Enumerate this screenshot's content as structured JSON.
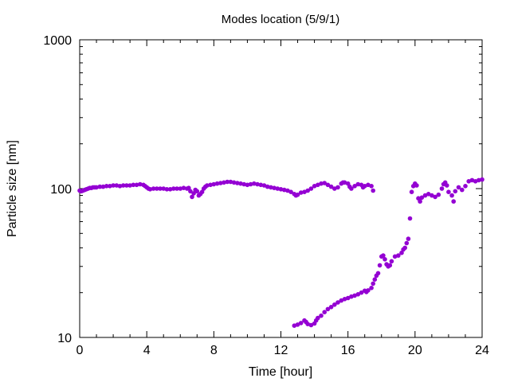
{
  "chart_data": {
    "type": "scatter",
    "title": "Modes location (5/9/1)",
    "xlabel": "Time [hour]",
    "ylabel": "Particle size [nm]",
    "xlim": [
      0,
      24
    ],
    "ylim": [
      10,
      1000
    ],
    "y_scale": "log",
    "x_ticks": [
      0,
      4,
      8,
      12,
      16,
      20,
      24
    ],
    "y_ticks": [
      10,
      100,
      1000
    ],
    "grid": false,
    "legend": "none",
    "marker_color": "#9400d3",
    "series": [
      {
        "points": [
          [
            0.0,
            97
          ],
          [
            0.1,
            96
          ],
          [
            0.2,
            97
          ],
          [
            0.3,
            98
          ],
          [
            0.4,
            99
          ],
          [
            0.5,
            100
          ],
          [
            0.6,
            101
          ],
          [
            0.7,
            101
          ],
          [
            0.8,
            102
          ],
          [
            0.9,
            102
          ],
          [
            1.0,
            102
          ],
          [
            1.2,
            103
          ],
          [
            1.4,
            103
          ],
          [
            1.6,
            104
          ],
          [
            1.8,
            104
          ],
          [
            2.0,
            105
          ],
          [
            2.2,
            105
          ],
          [
            2.4,
            104
          ],
          [
            2.6,
            105
          ],
          [
            2.8,
            105
          ],
          [
            3.0,
            105
          ],
          [
            3.2,
            106
          ],
          [
            3.4,
            106
          ],
          [
            3.6,
            107
          ],
          [
            3.8,
            106
          ],
          [
            3.9,
            104
          ],
          [
            4.0,
            102
          ],
          [
            4.1,
            100
          ],
          [
            4.2,
            99
          ],
          [
            4.4,
            100
          ],
          [
            4.6,
            100
          ],
          [
            4.8,
            100
          ],
          [
            5.0,
            100
          ],
          [
            5.2,
            99
          ],
          [
            5.4,
            99
          ],
          [
            5.6,
            100
          ],
          [
            5.8,
            100
          ],
          [
            6.0,
            100
          ],
          [
            6.2,
            101
          ],
          [
            6.4,
            100
          ],
          [
            6.5,
            101
          ],
          [
            6.6,
            96
          ],
          [
            6.7,
            88
          ],
          [
            6.8,
            93
          ],
          [
            6.9,
            98
          ],
          [
            7.0,
            96
          ],
          [
            7.1,
            90
          ],
          [
            7.2,
            92
          ],
          [
            7.3,
            95
          ],
          [
            7.4,
            100
          ],
          [
            7.5,
            103
          ],
          [
            7.6,
            105
          ],
          [
            7.8,
            106
          ],
          [
            8.0,
            107
          ],
          [
            8.2,
            108
          ],
          [
            8.4,
            109
          ],
          [
            8.6,
            110
          ],
          [
            8.8,
            111
          ],
          [
            9.0,
            111
          ],
          [
            9.2,
            110
          ],
          [
            9.4,
            109
          ],
          [
            9.6,
            108
          ],
          [
            9.8,
            107
          ],
          [
            10.0,
            106
          ],
          [
            10.2,
            107
          ],
          [
            10.4,
            108
          ],
          [
            10.6,
            107
          ],
          [
            10.8,
            106
          ],
          [
            11.0,
            105
          ],
          [
            11.2,
            103
          ],
          [
            11.4,
            102
          ],
          [
            11.6,
            101
          ],
          [
            11.8,
            100
          ],
          [
            12.0,
            99
          ],
          [
            12.2,
            98
          ],
          [
            12.4,
            97
          ],
          [
            12.6,
            95
          ],
          [
            12.8,
            92
          ],
          [
            12.9,
            90
          ],
          [
            13.0,
            91
          ],
          [
            13.2,
            94
          ],
          [
            13.4,
            95
          ],
          [
            13.6,
            97
          ],
          [
            13.8,
            100
          ],
          [
            14.0,
            104
          ],
          [
            14.2,
            106
          ],
          [
            14.4,
            108
          ],
          [
            14.6,
            109
          ],
          [
            14.8,
            106
          ],
          [
            15.0,
            103
          ],
          [
            15.2,
            100
          ],
          [
            15.4,
            102
          ],
          [
            15.6,
            108
          ],
          [
            15.7,
            110
          ],
          [
            15.8,
            110
          ],
          [
            16.0,
            108
          ],
          [
            16.1,
            103
          ],
          [
            16.2,
            100
          ],
          [
            16.4,
            104
          ],
          [
            16.6,
            107
          ],
          [
            16.8,
            106
          ],
          [
            16.9,
            102
          ],
          [
            17.0,
            104
          ],
          [
            17.2,
            106
          ],
          [
            17.4,
            104
          ],
          [
            17.5,
            97
          ],
          [
            19.8,
            95
          ],
          [
            19.9,
            104
          ],
          [
            20.0,
            108
          ],
          [
            20.1,
            105
          ],
          [
            20.2,
            86
          ],
          [
            20.3,
            82
          ],
          [
            20.4,
            87
          ],
          [
            20.6,
            90
          ],
          [
            20.8,
            92
          ],
          [
            21.0,
            90
          ],
          [
            21.2,
            88
          ],
          [
            21.4,
            91
          ],
          [
            21.6,
            100
          ],
          [
            21.7,
            107
          ],
          [
            21.8,
            110
          ],
          [
            21.9,
            105
          ],
          [
            22.0,
            95
          ],
          [
            22.2,
            90
          ],
          [
            22.3,
            82
          ],
          [
            22.4,
            96
          ],
          [
            22.6,
            102
          ],
          [
            22.8,
            98
          ],
          [
            23.0,
            104
          ],
          [
            23.2,
            112
          ],
          [
            23.4,
            114
          ],
          [
            23.6,
            112
          ],
          [
            23.8,
            114
          ],
          [
            24.0,
            115
          ]
        ]
      },
      {
        "points": [
          [
            12.8,
            12.0
          ],
          [
            13.0,
            12.2
          ],
          [
            13.2,
            12.5
          ],
          [
            13.4,
            13.0
          ],
          [
            13.5,
            12.7
          ],
          [
            13.6,
            12.3
          ],
          [
            13.8,
            12.1
          ],
          [
            14.0,
            12.4
          ],
          [
            14.1,
            13.0
          ],
          [
            14.2,
            13.5
          ],
          [
            14.4,
            14.0
          ],
          [
            14.6,
            14.8
          ],
          [
            14.8,
            15.5
          ],
          [
            15.0,
            16.0
          ],
          [
            15.2,
            16.6
          ],
          [
            15.4,
            17.2
          ],
          [
            15.6,
            17.7
          ],
          [
            15.8,
            18.1
          ],
          [
            16.0,
            18.4
          ],
          [
            16.2,
            18.8
          ],
          [
            16.4,
            19.1
          ],
          [
            16.6,
            19.5
          ],
          [
            16.8,
            20.0
          ],
          [
            17.0,
            20.6
          ],
          [
            17.1,
            20.2
          ],
          [
            17.2,
            20.7
          ],
          [
            17.4,
            21.5
          ],
          [
            17.5,
            23.0
          ],
          [
            17.6,
            24.5
          ],
          [
            17.7,
            26.0
          ],
          [
            17.8,
            27.0
          ],
          [
            17.9,
            30.5
          ],
          [
            18.0,
            35.0
          ],
          [
            18.1,
            35.5
          ],
          [
            18.2,
            33.5
          ],
          [
            18.3,
            31.0
          ],
          [
            18.4,
            30.0
          ],
          [
            18.5,
            30.5
          ],
          [
            18.6,
            32.5
          ],
          [
            18.8,
            35.0
          ],
          [
            19.0,
            35.5
          ],
          [
            19.2,
            37.0
          ],
          [
            19.3,
            39.0
          ],
          [
            19.4,
            40.0
          ],
          [
            19.5,
            43.0
          ],
          [
            19.6,
            46.0
          ],
          [
            19.7,
            63.0
          ]
        ]
      }
    ]
  }
}
